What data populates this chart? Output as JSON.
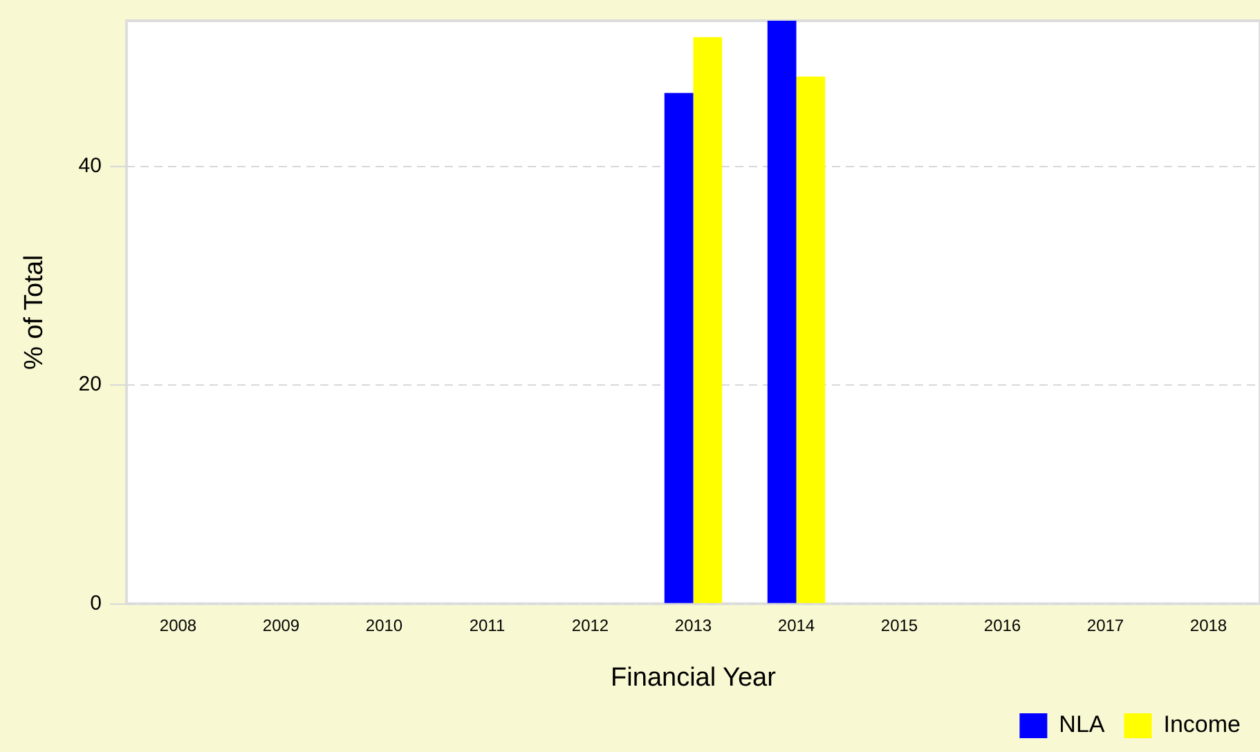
{
  "chart_data": {
    "type": "bar",
    "xlabel": "Financial Year",
    "ylabel": "% of Total",
    "categories": [
      "2008",
      "2009",
      "2010",
      "2011",
      "2012",
      "2013",
      "2014",
      "2015",
      "2016",
      "2017",
      "2018"
    ],
    "series": [
      {
        "name": "NLA",
        "color": "#0000ff",
        "values": [
          null,
          null,
          null,
          null,
          null,
          46.7,
          53.3,
          null,
          null,
          null,
          null
        ]
      },
      {
        "name": "Income",
        "color": "#ffff00",
        "values": [
          null,
          null,
          null,
          null,
          null,
          51.8,
          48.2,
          null,
          null,
          null,
          null
        ]
      }
    ],
    "ylim": [
      0,
      53.3
    ],
    "yticks": [
      0,
      20,
      40
    ],
    "grid": "y",
    "legend": "bottom right"
  }
}
